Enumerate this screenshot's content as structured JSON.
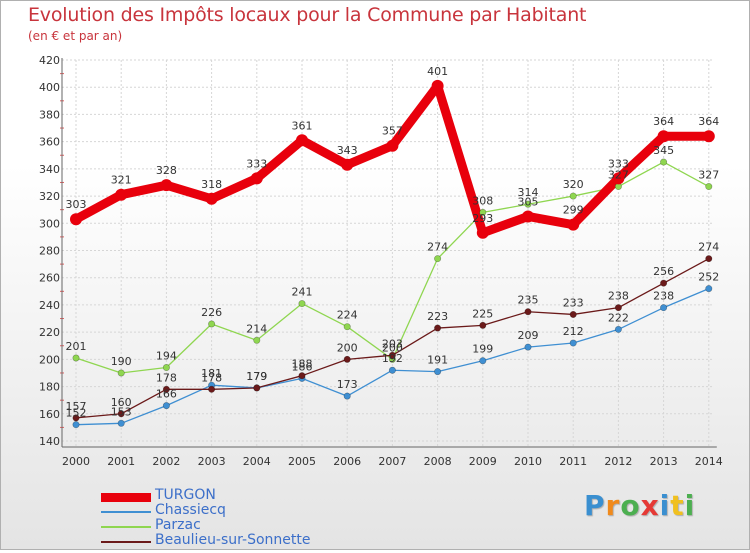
{
  "title": "Evolution des Impôts locaux pour la Commune par Habitant",
  "subtitle": "(en € et par an)",
  "logo": {
    "text": "Proxiti",
    "letters": [
      "P",
      "r",
      "o",
      "x",
      "i",
      "t",
      "i"
    ],
    "colors": [
      "#3a8fd0",
      "#f08a1c",
      "#4caf50",
      "#e53935",
      "#3a8fd0",
      "#f0c020",
      "#4caf50"
    ]
  },
  "chart_data": {
    "type": "line",
    "title": "Evolution des Impôts locaux pour la Commune par Habitant",
    "subtitle": "(en € et par an)",
    "xlabel": "",
    "ylabel": "",
    "ylim": [
      140,
      420
    ],
    "ytick_step": 20,
    "grid": true,
    "legend_position": "bottom-left",
    "categories": [
      "2000",
      "2001",
      "2002",
      "2003",
      "2004",
      "2005",
      "2006",
      "2007",
      "2008",
      "2009",
      "2010",
      "2011",
      "2012",
      "2013",
      "2014"
    ],
    "yticks": [
      "140",
      "160",
      "180",
      "200",
      "220",
      "240",
      "260",
      "280",
      "300",
      "320",
      "340",
      "360",
      "380",
      "400",
      "420"
    ],
    "series": [
      {
        "name": "TURGON",
        "color": "#e8000c",
        "values": [
          303,
          321,
          328,
          318,
          333,
          361,
          343,
          357,
          401,
          293,
          305,
          299,
          333,
          364,
          364
        ],
        "labels": [
          "303",
          "321",
          "328",
          "318",
          "333",
          "361",
          "343",
          "357",
          "401",
          "293",
          "305",
          "299",
          "333",
          "364",
          "364"
        ]
      },
      {
        "name": "Chassiecq",
        "color": "#3f8fd2",
        "values": [
          152,
          153,
          166,
          181,
          179,
          186,
          173,
          192,
          191,
          199,
          209,
          212,
          222,
          238,
          252
        ],
        "labels": [
          "152",
          "153",
          "166",
          "181",
          "179",
          "186",
          "173",
          "192",
          "191",
          "199",
          "209",
          "212",
          "222",
          "238",
          "252"
        ]
      },
      {
        "name": "Parzac",
        "color": "#8fd650",
        "values": [
          201,
          190,
          194,
          226,
          214,
          241,
          224,
          200,
          274,
          308,
          314,
          320,
          327,
          345,
          327
        ],
        "labels": [
          "201",
          "190",
          "194",
          "226",
          "214",
          "241",
          "224",
          "200",
          "274",
          "308",
          "314",
          "320",
          "327",
          "345",
          "327"
        ]
      },
      {
        "name": "Beaulieu-sur-Sonnette",
        "color": "#6b1a1a",
        "values": [
          157,
          160,
          178,
          178,
          179,
          188,
          200,
          203,
          223,
          225,
          235,
          233,
          238,
          256,
          274
        ],
        "labels": [
          "157",
          "160",
          "178",
          "178",
          "179",
          "188",
          "200",
          "203",
          "223",
          "225",
          "235",
          "233",
          "238",
          "256",
          "274"
        ]
      }
    ]
  }
}
